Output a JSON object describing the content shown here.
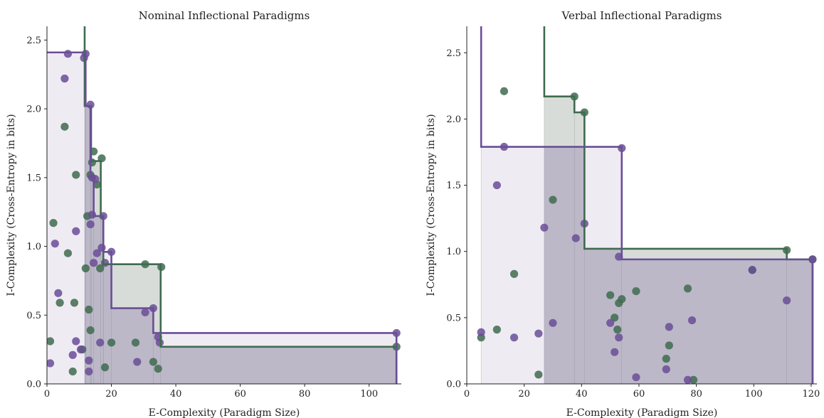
{
  "chart_data": [
    {
      "type": "scatter",
      "title": "Nominal Inflectional Paradigms",
      "xlabel": "E-Complexity (Paradigm Size)",
      "ylabel": "I-Complexity (Cross-Entropy in bits)",
      "xlim": [
        0,
        110
      ],
      "ylim": [
        0,
        2.6
      ],
      "xticks": [
        0,
        20,
        40,
        60,
        80,
        100
      ],
      "yticks": [
        0.0,
        0.5,
        1.0,
        1.5,
        2.0,
        2.5
      ],
      "xtick_labels": [
        "0",
        "20",
        "40",
        "60",
        "80",
        "100"
      ],
      "ytick_labels": [
        "0.0",
        "0.5",
        "1.0",
        "1.5",
        "2.0",
        "2.5"
      ],
      "grid": false,
      "legend": "none",
      "series": [
        {
          "color": "#3f6b4f",
          "points": [
            [
              1,
              0.31
            ],
            [
              2,
              1.17
            ],
            [
              4,
              0.59
            ],
            [
              5.5,
              1.87
            ],
            [
              6.5,
              0.95
            ],
            [
              8,
              0.09
            ],
            [
              8.5,
              0.59
            ],
            [
              9,
              1.52
            ],
            [
              11,
              0.25
            ],
            [
              12,
              0.84
            ],
            [
              12.5,
              1.22
            ],
            [
              13,
              0.54
            ],
            [
              13.5,
              0.39
            ],
            [
              13.5,
              1.52
            ],
            [
              14,
              1.61
            ],
            [
              14.5,
              1.69
            ],
            [
              15.5,
              1.45
            ],
            [
              16.5,
              0.84
            ],
            [
              17,
              1.64
            ],
            [
              18,
              0.12
            ],
            [
              20,
              0.3
            ],
            [
              27.5,
              0.3
            ],
            [
              30.5,
              0.87
            ],
            [
              33,
              0.16
            ],
            [
              34.5,
              0.11
            ],
            [
              35.5,
              0.85
            ],
            [
              108.5,
              0.27
            ]
          ],
          "frontier": [
            [
              11.7,
              2.6
            ],
            [
              11.7,
              2.02
            ],
            [
              13.7,
              2.02
            ],
            [
              13.7,
              1.62
            ],
            [
              16.7,
              1.62
            ],
            [
              16.7,
              1.21
            ],
            [
              17.5,
              1.21
            ],
            [
              17.5,
              0.87
            ],
            [
              30.5,
              0.87
            ],
            [
              35.3,
              0.87
            ],
            [
              35.3,
              0.27
            ],
            [
              108.5,
              0.27
            ],
            [
              108.5,
              0
            ]
          ]
        },
        {
          "color": "#6a4e96",
          "points": [
            [
              1,
              0.15
            ],
            [
              2.5,
              1.02
            ],
            [
              3.5,
              0.66
            ],
            [
              5.5,
              2.22
            ],
            [
              6.5,
              2.4
            ],
            [
              8,
              0.21
            ],
            [
              9,
              0.31
            ],
            [
              9,
              1.11
            ],
            [
              10.5,
              0.25
            ],
            [
              11.5,
              2.37
            ],
            [
              12,
              2.4
            ],
            [
              13,
              0.17
            ],
            [
              13,
              0.09
            ],
            [
              13.5,
              1.16
            ],
            [
              13.5,
              2.03
            ],
            [
              14,
              1.23
            ],
            [
              14,
              1.5
            ],
            [
              14.5,
              0.88
            ],
            [
              15,
              1.49
            ],
            [
              15.5,
              0.95
            ],
            [
              16.5,
              0.3
            ],
            [
              17,
              0.99
            ],
            [
              17.5,
              1.22
            ],
            [
              18,
              0.88
            ],
            [
              20,
              0.96
            ],
            [
              28,
              0.16
            ],
            [
              30.5,
              0.52
            ],
            [
              33,
              0.55
            ],
            [
              34.5,
              0.34
            ],
            [
              35,
              0.3
            ],
            [
              108.5,
              0.37
            ]
          ],
          "frontier": [
            [
              0,
              2.41
            ],
            [
              12,
              2.41
            ],
            [
              12,
              2.02
            ],
            [
              13.5,
              2.02
            ],
            [
              13.5,
              1.51
            ],
            [
              14.5,
              1.51
            ],
            [
              14.5,
              1.22
            ],
            [
              17.5,
              1.22
            ],
            [
              17.5,
              0.96
            ],
            [
              20,
              0.96
            ],
            [
              20,
              0.55
            ],
            [
              33,
              0.55
            ],
            [
              33,
              0.37
            ],
            [
              108.5,
              0.37
            ],
            [
              108.5,
              0
            ]
          ]
        }
      ]
    },
    {
      "type": "scatter",
      "title": "Verbal Inflectional Paradigms",
      "xlabel": "E-Complexity (Paradigm Size)",
      "ylabel": "I-Complexity (Cross-Entropy in bits)",
      "xlim": [
        0,
        122
      ],
      "ylim": [
        0,
        2.7
      ],
      "xticks": [
        0,
        20,
        40,
        60,
        80,
        100,
        120
      ],
      "yticks": [
        0.0,
        0.5,
        1.0,
        1.5,
        2.0,
        2.5
      ],
      "xtick_labels": [
        "0",
        "20",
        "40",
        "60",
        "80",
        "100",
        "120"
      ],
      "ytick_labels": [
        "0.0",
        "0.5",
        "1.0",
        "1.5",
        "2.0",
        "2.5"
      ],
      "grid": false,
      "legend": "none",
      "series": [
        {
          "color": "#3f6b4f",
          "points": [
            [
              5,
              0.35
            ],
            [
              10.5,
              0.41
            ],
            [
              13,
              2.21
            ],
            [
              16.5,
              0.83
            ],
            [
              25,
              0.07
            ],
            [
              30,
              1.39
            ],
            [
              37.5,
              2.17
            ],
            [
              41,
              2.05
            ],
            [
              50,
              0.67
            ],
            [
              51.5,
              0.5
            ],
            [
              52.5,
              0.41
            ],
            [
              53,
              0.61
            ],
            [
              54,
              0.64
            ],
            [
              59,
              0.7
            ],
            [
              69.5,
              0.19
            ],
            [
              70.5,
              0.29
            ],
            [
              77,
              0.72
            ],
            [
              79,
              0.03
            ],
            [
              99.5,
              0.86
            ],
            [
              111.5,
              1.01
            ],
            [
              120.5,
              0.94
            ]
          ],
          "frontier": [
            [
              27,
              2.7
            ],
            [
              27,
              2.17
            ],
            [
              37.5,
              2.17
            ],
            [
              37.5,
              2.05
            ],
            [
              41,
              2.05
            ],
            [
              41,
              1.02
            ],
            [
              111.5,
              1.02
            ],
            [
              111.5,
              0.94
            ],
            [
              120.5,
              0.94
            ],
            [
              120.5,
              0
            ]
          ]
        },
        {
          "color": "#6a4e96",
          "points": [
            [
              5,
              0.39
            ],
            [
              10.5,
              1.5
            ],
            [
              13,
              1.79
            ],
            [
              16.5,
              0.35
            ],
            [
              25,
              0.38
            ],
            [
              27,
              1.18
            ],
            [
              30,
              0.46
            ],
            [
              38,
              1.1
            ],
            [
              41,
              1.21
            ],
            [
              50,
              0.46
            ],
            [
              51.5,
              0.24
            ],
            [
              53,
              0.96
            ],
            [
              53,
              0.35
            ],
            [
              54,
              1.78
            ],
            [
              59,
              0.05
            ],
            [
              69.5,
              0.11
            ],
            [
              70.5,
              0.43
            ],
            [
              77,
              0.03
            ],
            [
              78.5,
              0.48
            ],
            [
              99.5,
              0.86
            ],
            [
              111.5,
              0.63
            ],
            [
              120.5,
              0.94
            ]
          ],
          "frontier": [
            [
              5,
              2.7
            ],
            [
              5,
              1.79
            ],
            [
              54,
              1.79
            ],
            [
              54,
              0.94
            ],
            [
              120.5,
              0.94
            ],
            [
              120.5,
              0
            ]
          ]
        }
      ]
    }
  ]
}
